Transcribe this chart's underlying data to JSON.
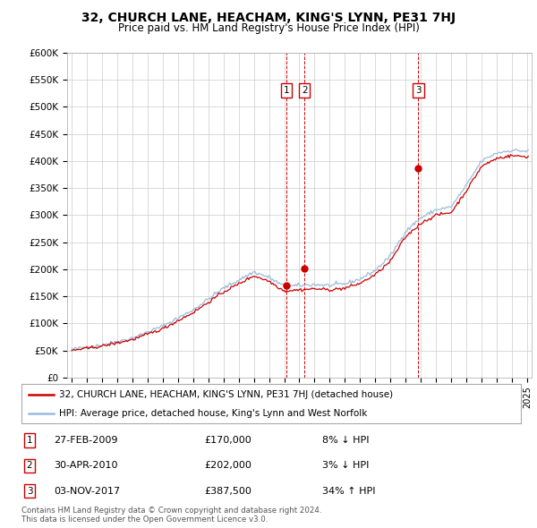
{
  "title": "32, CHURCH LANE, HEACHAM, KING'S LYNN, PE31 7HJ",
  "subtitle": "Price paid vs. HM Land Registry's House Price Index (HPI)",
  "ylabel_ticks": [
    "£0",
    "£50K",
    "£100K",
    "£150K",
    "£200K",
    "£250K",
    "£300K",
    "£350K",
    "£400K",
    "£450K",
    "£500K",
    "£550K",
    "£600K"
  ],
  "ylim": [
    0,
    600000
  ],
  "ytick_vals": [
    0,
    50000,
    100000,
    150000,
    200000,
    250000,
    300000,
    350000,
    400000,
    450000,
    500000,
    550000,
    600000
  ],
  "transactions": [
    {
      "num": 1,
      "date": "27-FEB-2009",
      "price": 170000,
      "hpi_pct": "8% ↓ HPI",
      "x_year": 2009.15
    },
    {
      "num": 2,
      "date": "30-APR-2010",
      "price": 202000,
      "hpi_pct": "3% ↓ HPI",
      "x_year": 2010.33
    },
    {
      "num": 3,
      "date": "03-NOV-2017",
      "price": 387500,
      "hpi_pct": "34% ↑ HPI",
      "x_year": 2017.84
    }
  ],
  "legend_line1": "32, CHURCH LANE, HEACHAM, KING'S LYNN, PE31 7HJ (detached house)",
  "legend_line2": "HPI: Average price, detached house, King's Lynn and West Norfolk",
  "footnote": "Contains HM Land Registry data © Crown copyright and database right 2024.\nThis data is licensed under the Open Government Licence v3.0.",
  "line_color_red": "#cc0000",
  "line_color_blue": "#99bbdd",
  "marker_color_red": "#cc0000",
  "bg_color": "#ffffff",
  "grid_color": "#cccccc",
  "dashed_color": "#cc0000",
  "xlim_left": 1994.7,
  "xlim_right": 2025.3
}
